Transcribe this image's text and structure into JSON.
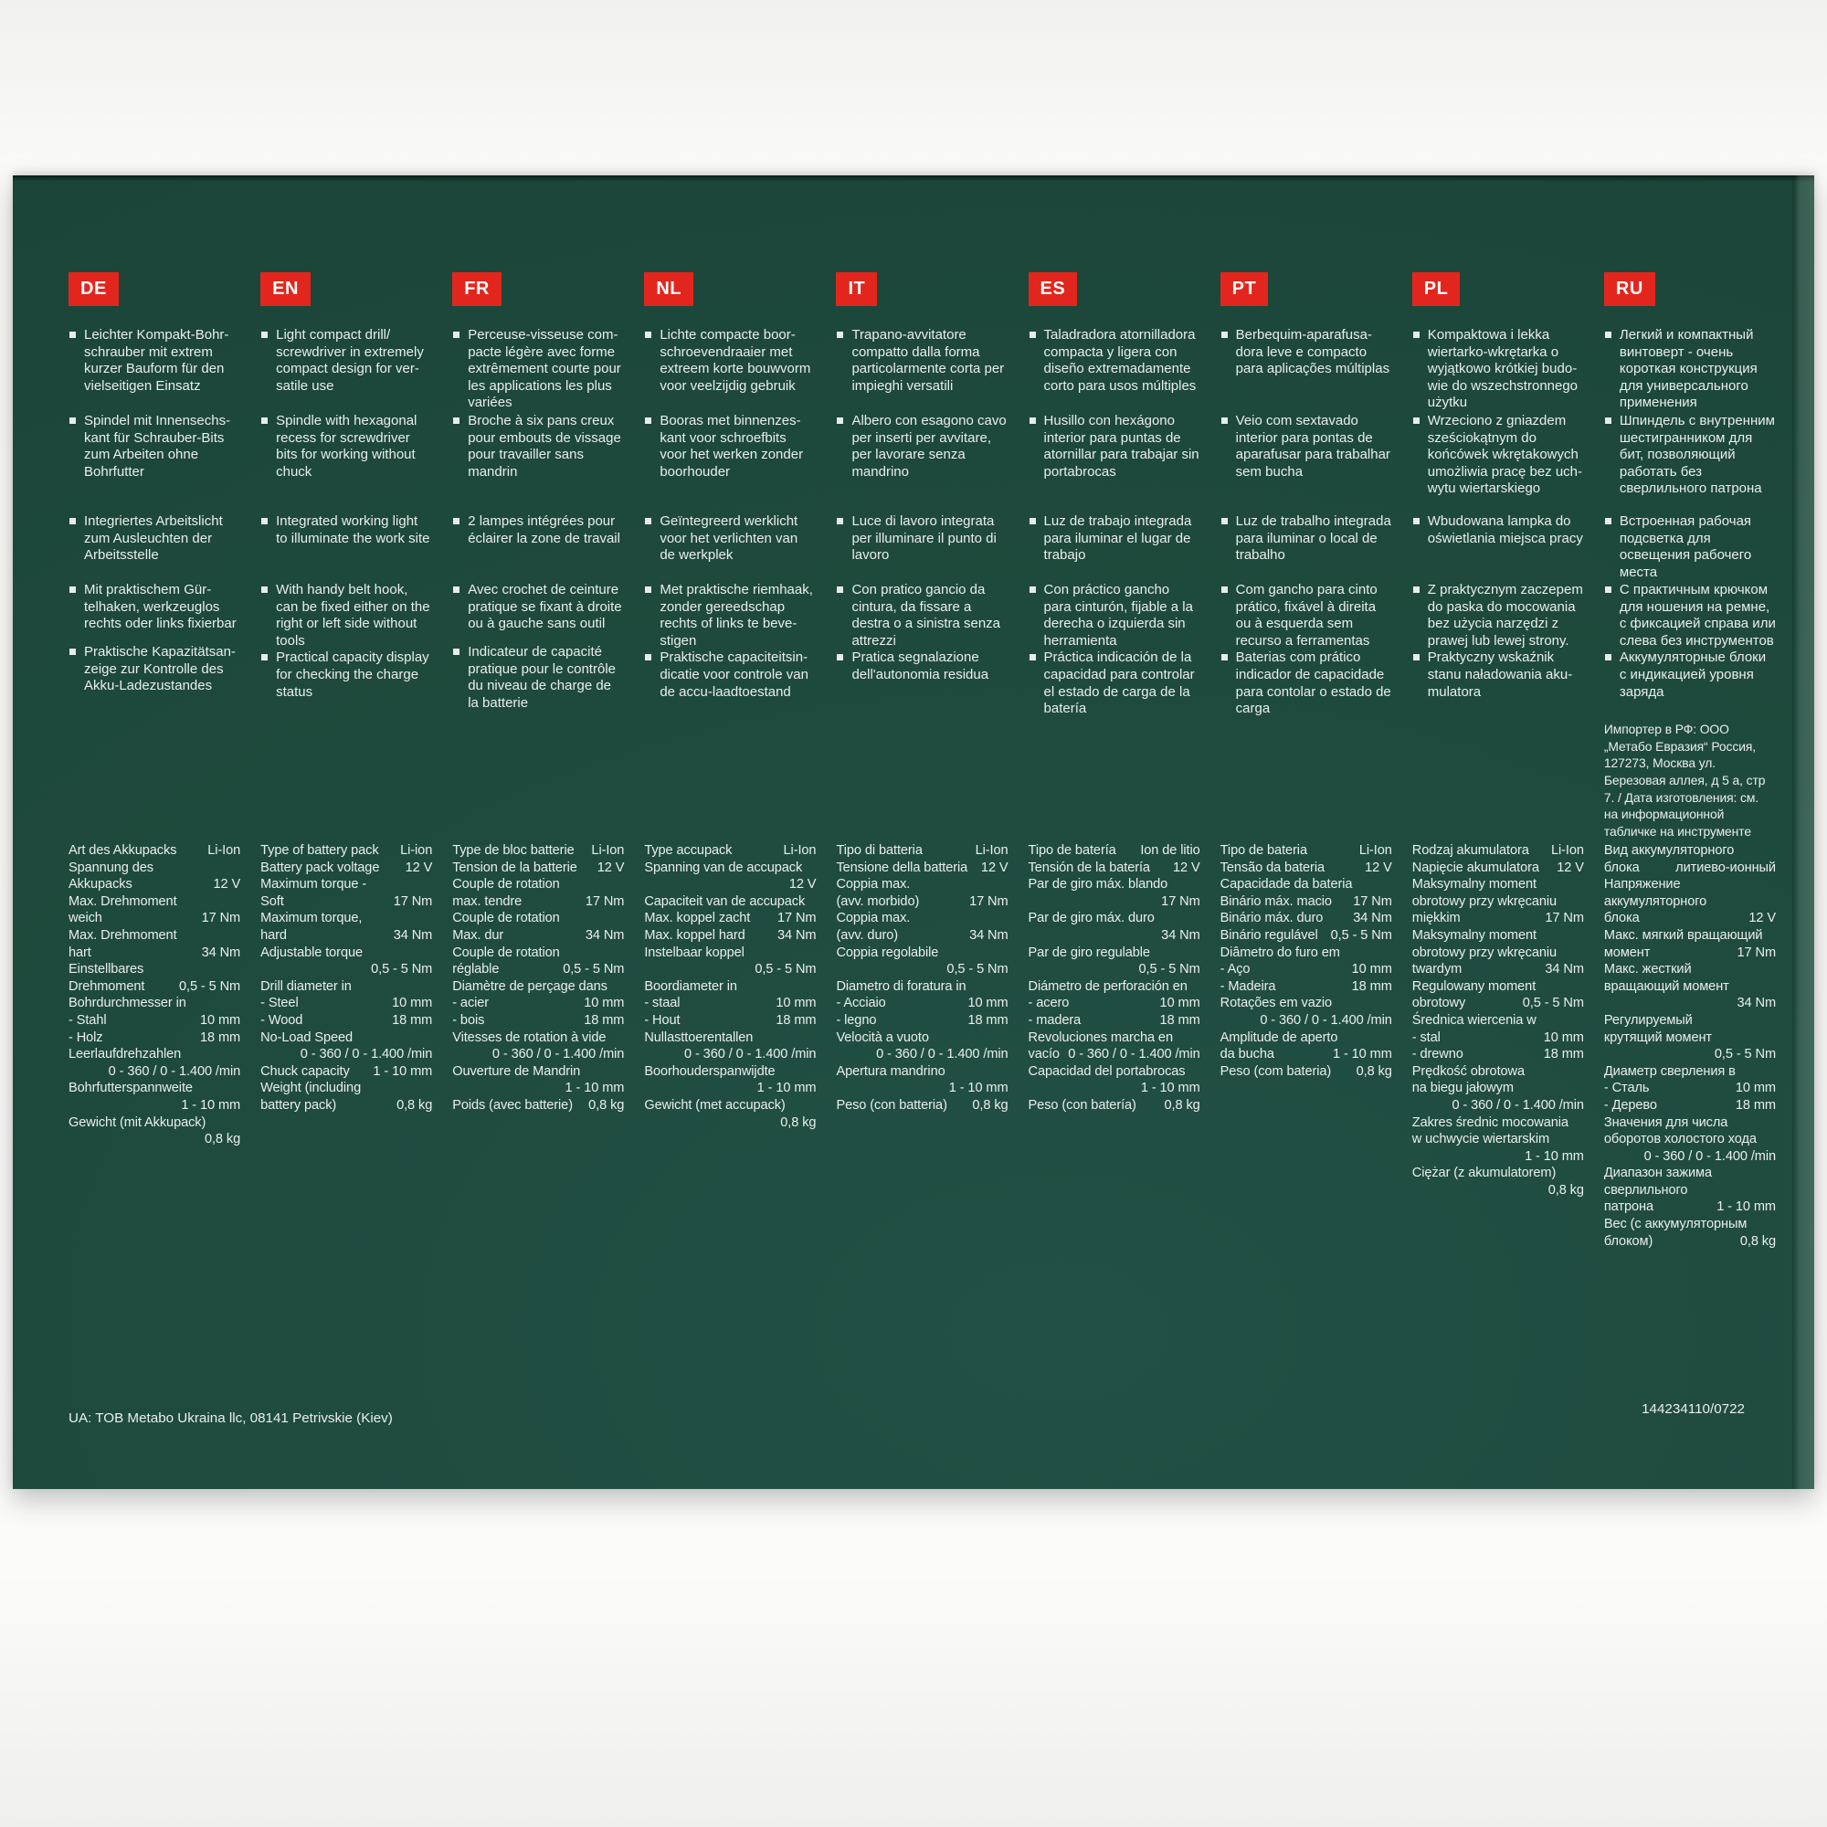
{
  "panel": {
    "background": "#1e4a3d",
    "accent_red": "#e3261d",
    "text_color": "#eaeeea",
    "footer_left": "UA: TOB Metabo Ukraina llc, 08141 Petrivskie (Kiev)",
    "footer_right": "144234110/0722"
  },
  "columns": [
    {
      "code": "DE",
      "bullets": [
        "Leichter Kompakt-Bohr­schrauber mit extrem kurzer Bauform für den vielseitigen Einsatz",
        "Spindel mit Innensechs­kant für Schrauber-Bits zum Arbeiten ohne Bohrfutter",
        "Integriertes Arbeitslicht zum Ausleuchten der Arbeitsstelle",
        "Mit praktischem Gür­telhaken, werkzeuglos rechts oder links fixierbar",
        "Praktische Kapazitätsan­zeige zur Kontrolle des Akku-Ladezustandes"
      ],
      "specs": [
        {
          "l": "Art des Akkupacks",
          "r": "Li-Ion"
        },
        {
          "l": "Spannung des",
          "r": ""
        },
        {
          "l": "Akkupacks",
          "r": "12 V"
        },
        {
          "l": "Max. Drehmoment",
          "r": ""
        },
        {
          "l": "weich",
          "r": "17 Nm"
        },
        {
          "l": "Max. Drehmoment",
          "r": ""
        },
        {
          "l": "hart",
          "r": "34 Nm"
        },
        {
          "l": "Einstellbares",
          "r": ""
        },
        {
          "l": "Drehmoment",
          "r": "0,5 - 5 Nm"
        },
        {
          "l": "Bohrdurchmesser in",
          "r": ""
        },
        {
          "l": "- Stahl",
          "r": "10 mm"
        },
        {
          "l": "- Holz",
          "r": "18 mm"
        },
        {
          "l": "Leerlaufdrehzahlen",
          "r": ""
        },
        {
          "l": "",
          "r": "0 - 360 / 0 - 1.400 /min"
        },
        {
          "l": "Bohrfutterspannweite",
          "r": ""
        },
        {
          "l": "",
          "r": "1 - 10 mm"
        },
        {
          "l": "Gewicht (mit Akkupack)",
          "r": ""
        },
        {
          "l": "",
          "r": "0,8 kg"
        }
      ]
    },
    {
      "code": "EN",
      "bullets": [
        "Light compact drill/ screwdriver in extremely compact design for ver­satile use",
        "Spindle with hexagonal recess for screwdriver bits for working without chuck",
        "Integrated working light to illuminate the work site",
        "With handy belt hook, can be fixed either on the right or left side without tools",
        "Practical capacity display for checking the charge status"
      ],
      "specs": [
        {
          "l": "Type of battery pack",
          "r": "Li-ion"
        },
        {
          "l": "Battery pack voltage",
          "r": "12 V"
        },
        {
          "l": "Maximum torque -",
          "r": ""
        },
        {
          "l": "Soft",
          "r": "17 Nm"
        },
        {
          "l": "Maximum torque,",
          "r": ""
        },
        {
          "l": "hard",
          "r": "34 Nm"
        },
        {
          "l": "Adjustable torque",
          "r": ""
        },
        {
          "l": "",
          "r": "0,5 - 5 Nm"
        },
        {
          "l": "Drill diameter in",
          "r": ""
        },
        {
          "l": "- Steel",
          "r": "10 mm"
        },
        {
          "l": "- Wood",
          "r": "18 mm"
        },
        {
          "l": "No-Load Speed",
          "r": ""
        },
        {
          "l": "",
          "r": "0 - 360 / 0 - 1.400 /min"
        },
        {
          "l": "Chuck capacity",
          "r": "1 - 10 mm"
        },
        {
          "l": "Weight (including",
          "r": ""
        },
        {
          "l": "battery pack)",
          "r": "0,8 kg"
        }
      ]
    },
    {
      "code": "FR",
      "bullets": [
        "Perceuse-visseuse com­pacte légère avec forme extrêmement courte pour les applications les plus variées",
        "Broche à six pans creux pour embouts de vissage pour travailler sans mandrin",
        "2 lampes intégrées pour éclairer la zone de travail",
        "Avec crochet de ceinture pratique se fixant à droite ou à gauche sans outil",
        "Indicateur de capacité pratique pour le contrôle du niveau de charge de la batterie"
      ],
      "specs": [
        {
          "l": "Type de bloc batterie",
          "r": "Li-Ion"
        },
        {
          "l": "Tension de la batterie",
          "r": "12 V"
        },
        {
          "l": "Couple de rotation",
          "r": ""
        },
        {
          "l": "max. tendre",
          "r": "17 Nm"
        },
        {
          "l": "Couple de rotation",
          "r": ""
        },
        {
          "l": "Max. dur",
          "r": "34 Nm"
        },
        {
          "l": "Couple de rotation",
          "r": ""
        },
        {
          "l": "réglable",
          "r": "0,5 - 5 Nm"
        },
        {
          "l": "Diamètre de perçage dans",
          "r": ""
        },
        {
          "l": "- acier",
          "r": "10 mm"
        },
        {
          "l": "- bois",
          "r": "18 mm"
        },
        {
          "l": "Vitesses de rotation à vide",
          "r": ""
        },
        {
          "l": "",
          "r": "0 - 360 / 0 - 1.400 /min"
        },
        {
          "l": "Ouverture de Mandrin",
          "r": ""
        },
        {
          "l": "",
          "r": "1 - 10 mm"
        },
        {
          "l": "Poids (avec batterie)",
          "r": "0,8 kg"
        }
      ]
    },
    {
      "code": "NL",
      "bullets": [
        "Lichte compacte boor­schroevendraaier met extreem korte bouw­vorm voor veelzijdig gebruik",
        "Booras met binnenzes­kant voor schroefbits voor het werken zonder boorhouder",
        "Geïntegreerd werklicht voor het verlichten van de werkplek",
        "Met praktische riemhaak, zonder gereedschap rechts of links te beve­stigen",
        "Praktische capaciteitsin­dicatie voor controle van de accu-laadtoestand"
      ],
      "specs": [
        {
          "l": "Type accupack",
          "r": "Li-Ion"
        },
        {
          "l": "Spanning van de accupack",
          "r": ""
        },
        {
          "l": "",
          "r": "12 V"
        },
        {
          "l": "Capaciteit van de accupack",
          "r": ""
        },
        {
          "l": "Max. koppel zacht",
          "r": "17 Nm"
        },
        {
          "l": "Max. koppel hard",
          "r": "34 Nm"
        },
        {
          "l": "Instelbaar koppel",
          "r": ""
        },
        {
          "l": "",
          "r": "0,5 - 5 Nm"
        },
        {
          "l": "Boordiameter in",
          "r": ""
        },
        {
          "l": "- staal",
          "r": "10 mm"
        },
        {
          "l": "- Hout",
          "r": "18 mm"
        },
        {
          "l": "Nullasttoerentallen",
          "r": ""
        },
        {
          "l": "",
          "r": "0 - 360 / 0 - 1.400 /min"
        },
        {
          "l": "Boorhouderspanwijdte",
          "r": ""
        },
        {
          "l": "",
          "r": "1 - 10 mm"
        },
        {
          "l": "Gewicht (met accupack)",
          "r": ""
        },
        {
          "l": "",
          "r": "0,8 kg"
        }
      ]
    },
    {
      "code": "IT",
      "bullets": [
        "Trapano-avvitatore compatto dalla forma particolarmente corta per impieghi versatili",
        "Albero con esagono cavo per inserti per avvi­tare, per lavorare senza mandrino",
        "Luce di lavoro integrata per illuminare il punto di lavoro",
        "Con pratico gancio da cintura, da fissare a destra o a sinistra senza attrezzi",
        "Pratica segnalazione dell'autonomia residua"
      ],
      "specs": [
        {
          "l": "Tipo di batteria",
          "r": "Li-Ion"
        },
        {
          "l": "Tensione della batteria",
          "r": "12 V"
        },
        {
          "l": "Coppia max.",
          "r": ""
        },
        {
          "l": "(avv. morbido)",
          "r": "17 Nm"
        },
        {
          "l": "Coppia max.",
          "r": ""
        },
        {
          "l": "(avv. duro)",
          "r": "34 Nm"
        },
        {
          "l": "Coppia regolabile",
          "r": ""
        },
        {
          "l": "",
          "r": "0,5 - 5 Nm"
        },
        {
          "l": "Diametro di foratura in",
          "r": ""
        },
        {
          "l": "- Acciaio",
          "r": "10 mm"
        },
        {
          "l": "- legno",
          "r": "18 mm"
        },
        {
          "l": "Velocità a vuoto",
          "r": ""
        },
        {
          "l": "",
          "r": "0 - 360 / 0 - 1.400 /min"
        },
        {
          "l": "Apertura mandrino",
          "r": ""
        },
        {
          "l": "",
          "r": "1 - 10 mm"
        },
        {
          "l": "Peso (con batteria)",
          "r": "0,8 kg"
        }
      ]
    },
    {
      "code": "ES",
      "bullets": [
        "Taladradora atornilladora compacta y ligera con diseño extremadamente corto para usos múl­tiples",
        "Husillo con hexágono interior para puntas de atornillar para trabajar sin portabrocas",
        "Luz de trabajo integrada para iluminar el lugar de trabajo",
        "Con práctico gancho para cinturón, fijable a la derecha o izquierda sin herramienta",
        "Práctica indicación de la capacidad para controlar el estado de carga de la batería"
      ],
      "specs": [
        {
          "l": "Tipo de batería",
          "r": "Ion de litio"
        },
        {
          "l": "Tensión de la batería",
          "r": "12 V"
        },
        {
          "l": "Par de giro máx. blando",
          "r": ""
        },
        {
          "l": "",
          "r": "17 Nm"
        },
        {
          "l": "Par de giro máx. duro",
          "r": ""
        },
        {
          "l": "",
          "r": "34 Nm"
        },
        {
          "l": "Par de giro regulable",
          "r": ""
        },
        {
          "l": "",
          "r": "0,5 - 5 Nm"
        },
        {
          "l": "Diámetro de perforación en",
          "r": ""
        },
        {
          "l": "- acero",
          "r": "10 mm"
        },
        {
          "l": "- madera",
          "r": "18 mm"
        },
        {
          "l": "Revoluciones marcha en",
          "r": ""
        },
        {
          "l": "vacío",
          "r": "0 - 360 / 0 - 1.400 /min"
        },
        {
          "l": "Capacidad del portabrocas",
          "r": ""
        },
        {
          "l": "",
          "r": "1 - 10 mm"
        },
        {
          "l": "Peso (con batería)",
          "r": "0,8 kg"
        }
      ]
    },
    {
      "code": "PT",
      "bullets": [
        "Berbequim-aparafusa­dora leve e compacto para aplicações múl­tiplas",
        "Veio com sextavado interior para pontas de aparafusar para trabal­har sem bucha",
        "Luz de trabalho inte­grada para iluminar o local de trabalho",
        "Com gancho para cinto prático, fixável à direita ou à esquerda sem recurso a ferramentas",
        "Baterias com prático indicador de capacidade para contolar o estado de carga"
      ],
      "specs": [
        {
          "l": "Tipo de bateria",
          "r": "Li-Ion"
        },
        {
          "l": "Tensão da bateria",
          "r": "12 V"
        },
        {
          "l": "Capacidade da bateria",
          "r": ""
        },
        {
          "l": "Binário máx. macio",
          "r": "17 Nm"
        },
        {
          "l": "Binário máx. duro",
          "r": "34 Nm"
        },
        {
          "l": "Binário regulável",
          "r": "0,5 - 5 Nm"
        },
        {
          "l": "Diâmetro do furo em",
          "r": ""
        },
        {
          "l": "- Aço",
          "r": "10 mm"
        },
        {
          "l": "- Madeira",
          "r": "18 mm"
        },
        {
          "l": "Rotações em vazio",
          "r": ""
        },
        {
          "l": "",
          "r": "0 - 360 / 0 - 1.400 /min"
        },
        {
          "l": "Amplitude de aperto",
          "r": ""
        },
        {
          "l": "da bucha",
          "r": "1 - 10 mm"
        },
        {
          "l": "Peso (com bateria)",
          "r": "0,8 kg"
        }
      ]
    },
    {
      "code": "PL",
      "bullets": [
        "Kompaktowa i lekka wiertarko-wkrętarka o wyjątkowo krótkiej budo­wie do wszechstronnego użytku",
        "Wrzeciono z gniazdem sześciokątnym do końcówek wkrętakowych umożliwia pracę bez uch­wytu wiertarskiego",
        "Wbudowana lampka do oświetlania miejsca pracy",
        "Z praktycznym zaczepem do paska do mocowania bez użycia narzędzi z pra­wej lub lewej strony.",
        "Praktyczny wskaźnik stanu naładowania aku­mulatora"
      ],
      "specs": [
        {
          "l": "Rodzaj akumulatora",
          "r": "Li-Ion"
        },
        {
          "l": "Napięcie akumulatora",
          "r": "12 V"
        },
        {
          "l": "Maksymalny moment",
          "r": ""
        },
        {
          "l": "obrotowy przy wkręcaniu",
          "r": ""
        },
        {
          "l": "miękkim",
          "r": "17 Nm"
        },
        {
          "l": "Maksymalny moment",
          "r": ""
        },
        {
          "l": "obrotowy przy wkręcaniu",
          "r": ""
        },
        {
          "l": "twardym",
          "r": "34 Nm"
        },
        {
          "l": "Regulowany moment",
          "r": ""
        },
        {
          "l": "obrotowy",
          "r": "0,5 - 5 Nm"
        },
        {
          "l": "Średnica wiercenia w",
          "r": ""
        },
        {
          "l": "- stal",
          "r": "10 mm"
        },
        {
          "l": "- drewno",
          "r": "18 mm"
        },
        {
          "l": "Prędkość obrotowa",
          "r": ""
        },
        {
          "l": "na biegu jałowym",
          "r": ""
        },
        {
          "l": "",
          "r": "0 - 360 / 0 - 1.400 /min"
        },
        {
          "l": "Zakres średnic mocowania",
          "r": ""
        },
        {
          "l": "w uchwycie wiertarskim",
          "r": ""
        },
        {
          "l": "",
          "r": "1 - 10 mm"
        },
        {
          "l": "Ciężar (z akumulatorem)",
          "r": ""
        },
        {
          "l": "",
          "r": "0,8 kg"
        }
      ]
    },
    {
      "code": "RU",
      "bullets": [
        "Легкий и компактный винтоверт - очень короткая конструкция для универсального применения",
        "Шпиндель с внутренним шестигранником для бит, позволяющий работать без сверлильного патрона",
        "Встроенная рабочая подсветка для освещения рабочего места",
        "С практичным крючком для ношения на ремне, с фиксацией справа или слева без инструментов",
        "Аккумуляторные блоки с индикацией уровня заряда"
      ],
      "importer": "Импортер в РФ: ООО „Метабо Евразия“ Россия, 127273, Москва ул. Березовая аллея, д 5 а, стр 7. / Дата изготовления: см. на информационной табличке на инструменте",
      "specs": [
        {
          "l": "Вид аккумуляторного",
          "r": ""
        },
        {
          "l": "блока",
          "r": "литиево-ионный"
        },
        {
          "l": "Напряжение",
          "r": ""
        },
        {
          "l": "аккумуляторного",
          "r": ""
        },
        {
          "l": "блока",
          "r": "12 V"
        },
        {
          "l": "Макс. мягкий вращающий",
          "r": ""
        },
        {
          "l": "момент",
          "r": "17 Nm"
        },
        {
          "l": "Макс. жесткий",
          "r": ""
        },
        {
          "l": "вращающий момент",
          "r": ""
        },
        {
          "l": "",
          "r": "34 Nm"
        },
        {
          "l": "Регулируемый",
          "r": ""
        },
        {
          "l": "крутящий момент",
          "r": ""
        },
        {
          "l": "",
          "r": "0,5 - 5 Nm"
        },
        {
          "l": "Диаметр сверления в",
          "r": ""
        },
        {
          "l": "- Сталь",
          "r": "10 mm"
        },
        {
          "l": "- Дерево",
          "r": "18 mm"
        },
        {
          "l": "Значения для числа",
          "r": ""
        },
        {
          "l": "оборотов холостого хода",
          "r": ""
        },
        {
          "l": "",
          "r": "0 - 360 / 0 - 1.400 /min"
        },
        {
          "l": "Диапазон зажима",
          "r": ""
        },
        {
          "l": "сверлильного",
          "r": ""
        },
        {
          "l": "патрона",
          "r": "1 - 10 mm"
        },
        {
          "l": "Вес (с аккумуляторным",
          "r": ""
        },
        {
          "l": "блоком)",
          "r": "0,8 kg"
        }
      ]
    }
  ]
}
